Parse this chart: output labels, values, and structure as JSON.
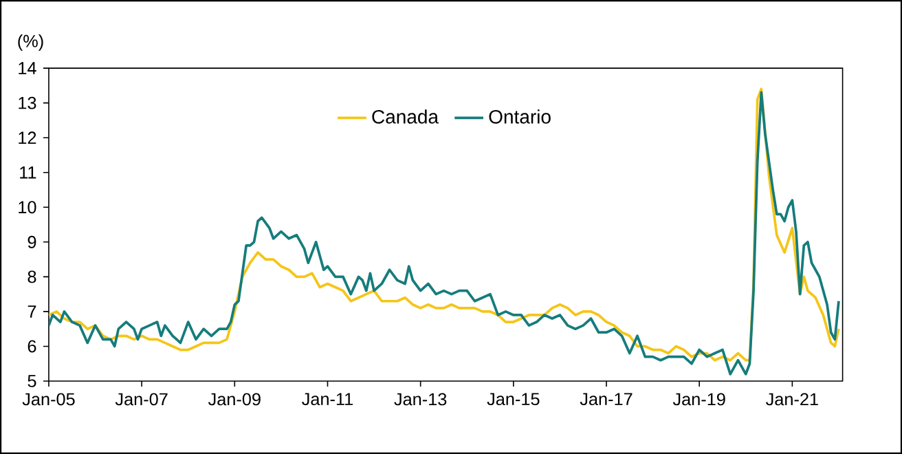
{
  "chart_data": {
    "type": "line",
    "ylabel": "(%)",
    "xlim": [
      "2005-01",
      "2022-02"
    ],
    "xticks": [
      {
        "value": "2005-01",
        "label": "Jan-05"
      },
      {
        "value": "2007-01",
        "label": "Jan-07"
      },
      {
        "value": "2009-01",
        "label": "Jan-09"
      },
      {
        "value": "2011-01",
        "label": "Jan-11"
      },
      {
        "value": "2013-01",
        "label": "Jan-13"
      },
      {
        "value": "2015-01",
        "label": "Jan-15"
      },
      {
        "value": "2017-01",
        "label": "Jan-17"
      },
      {
        "value": "2019-01",
        "label": "Jan-19"
      },
      {
        "value": "2021-01",
        "label": "Jan-21"
      }
    ],
    "ylim": [
      5,
      14
    ],
    "yticks": [
      5,
      6,
      7,
      8,
      9,
      10,
      11,
      12,
      13,
      14
    ],
    "grid": false,
    "legend": "top",
    "marker": "none",
    "line_style": "solid",
    "series": [
      {
        "name": "Canada",
        "color": "#f5c518",
        "x": [
          "2005-01",
          "2005-03",
          "2005-05",
          "2005-07",
          "2005-09",
          "2005-11",
          "2006-01",
          "2006-03",
          "2006-05",
          "2006-07",
          "2006-09",
          "2006-11",
          "2007-01",
          "2007-03",
          "2007-05",
          "2007-07",
          "2007-09",
          "2007-11",
          "2008-01",
          "2008-03",
          "2008-05",
          "2008-07",
          "2008-09",
          "2008-11",
          "2009-01",
          "2009-03",
          "2009-05",
          "2009-07",
          "2009-09",
          "2009-11",
          "2010-01",
          "2010-03",
          "2010-05",
          "2010-07",
          "2010-09",
          "2010-11",
          "2011-01",
          "2011-03",
          "2011-05",
          "2011-07",
          "2011-09",
          "2011-11",
          "2012-01",
          "2012-03",
          "2012-05",
          "2012-07",
          "2012-09",
          "2012-11",
          "2013-01",
          "2013-03",
          "2013-05",
          "2013-07",
          "2013-09",
          "2013-11",
          "2014-01",
          "2014-03",
          "2014-05",
          "2014-07",
          "2014-09",
          "2014-11",
          "2015-01",
          "2015-03",
          "2015-05",
          "2015-07",
          "2015-09",
          "2015-11",
          "2016-01",
          "2016-03",
          "2016-05",
          "2016-07",
          "2016-09",
          "2016-11",
          "2017-01",
          "2017-03",
          "2017-05",
          "2017-07",
          "2017-09",
          "2017-11",
          "2018-01",
          "2018-03",
          "2018-05",
          "2018-07",
          "2018-09",
          "2018-11",
          "2019-01",
          "2019-03",
          "2019-05",
          "2019-07",
          "2019-09",
          "2019-11",
          "2020-01",
          "2020-02",
          "2020-03",
          "2020-04",
          "2020-05",
          "2020-07",
          "2020-09",
          "2020-11",
          "2021-01",
          "2021-03",
          "2021-04",
          "2021-05",
          "2021-07",
          "2021-09",
          "2021-11",
          "2021-12",
          "2022-01"
        ],
        "values": [
          6.9,
          7.0,
          6.8,
          6.7,
          6.7,
          6.5,
          6.6,
          6.3,
          6.2,
          6.3,
          6.3,
          6.2,
          6.3,
          6.2,
          6.2,
          6.1,
          6.0,
          5.9,
          5.9,
          6.0,
          6.1,
          6.1,
          6.1,
          6.2,
          7.0,
          8.0,
          8.4,
          8.7,
          8.5,
          8.5,
          8.3,
          8.2,
          8.0,
          8.0,
          8.1,
          7.7,
          7.8,
          7.7,
          7.6,
          7.3,
          7.4,
          7.5,
          7.6,
          7.3,
          7.3,
          7.3,
          7.4,
          7.2,
          7.1,
          7.2,
          7.1,
          7.1,
          7.2,
          7.1,
          7.1,
          7.1,
          7.0,
          7.0,
          6.9,
          6.7,
          6.7,
          6.8,
          6.9,
          6.9,
          6.9,
          7.1,
          7.2,
          7.1,
          6.9,
          7.0,
          7.0,
          6.9,
          6.7,
          6.6,
          6.4,
          6.3,
          6.0,
          6.0,
          5.9,
          5.9,
          5.8,
          6.0,
          5.9,
          5.7,
          5.8,
          5.8,
          5.6,
          5.7,
          5.6,
          5.8,
          5.6,
          5.6,
          7.8,
          13.1,
          13.4,
          10.9,
          9.2,
          8.7,
          9.4,
          7.5,
          8.0,
          7.6,
          7.4,
          6.9,
          6.1,
          6.0,
          6.5
        ]
      },
      {
        "name": "Ontario",
        "color": "#167c7c",
        "x": [
          "2005-01",
          "2005-02",
          "2005-04",
          "2005-05",
          "2005-07",
          "2005-09",
          "2005-11",
          "2006-01",
          "2006-03",
          "2006-05",
          "2006-06",
          "2006-07",
          "2006-09",
          "2006-11",
          "2006-12",
          "2007-01",
          "2007-03",
          "2007-05",
          "2007-06",
          "2007-07",
          "2007-09",
          "2007-11",
          "2008-01",
          "2008-03",
          "2008-05",
          "2008-07",
          "2008-09",
          "2008-11",
          "2008-12",
          "2009-01",
          "2009-02",
          "2009-04",
          "2009-05",
          "2009-06",
          "2009-07",
          "2009-08",
          "2009-10",
          "2009-11",
          "2010-01",
          "2010-03",
          "2010-05",
          "2010-07",
          "2010-08",
          "2010-10",
          "2010-11",
          "2010-12",
          "2011-01",
          "2011-03",
          "2011-05",
          "2011-07",
          "2011-09",
          "2011-10",
          "2011-11",
          "2011-12",
          "2012-01",
          "2012-03",
          "2012-05",
          "2012-07",
          "2012-09",
          "2012-10",
          "2012-11",
          "2013-01",
          "2013-03",
          "2013-05",
          "2013-07",
          "2013-09",
          "2013-11",
          "2014-01",
          "2014-03",
          "2014-05",
          "2014-07",
          "2014-09",
          "2014-11",
          "2015-01",
          "2015-03",
          "2015-05",
          "2015-07",
          "2015-09",
          "2015-11",
          "2016-01",
          "2016-03",
          "2016-05",
          "2016-07",
          "2016-09",
          "2016-11",
          "2017-01",
          "2017-03",
          "2017-05",
          "2017-07",
          "2017-09",
          "2017-11",
          "2018-01",
          "2018-03",
          "2018-05",
          "2018-07",
          "2018-09",
          "2018-11",
          "2019-01",
          "2019-03",
          "2019-05",
          "2019-07",
          "2019-09",
          "2019-11",
          "2020-01",
          "2020-02",
          "2020-03",
          "2020-04",
          "2020-05",
          "2020-06",
          "2020-07",
          "2020-08",
          "2020-09",
          "2020-10",
          "2020-11",
          "2020-12",
          "2021-01",
          "2021-02",
          "2021-03",
          "2021-04",
          "2021-05",
          "2021-06",
          "2021-07",
          "2021-08",
          "2021-09",
          "2021-10",
          "2021-11",
          "2021-12",
          "2022-01"
        ],
        "values": [
          6.6,
          6.9,
          6.7,
          7.0,
          6.7,
          6.6,
          6.1,
          6.6,
          6.2,
          6.2,
          6.0,
          6.5,
          6.7,
          6.5,
          6.2,
          6.5,
          6.6,
          6.7,
          6.3,
          6.6,
          6.3,
          6.1,
          6.7,
          6.2,
          6.5,
          6.3,
          6.5,
          6.5,
          6.7,
          7.2,
          7.3,
          8.9,
          8.9,
          9.0,
          9.6,
          9.7,
          9.4,
          9.1,
          9.3,
          9.1,
          9.2,
          8.8,
          8.4,
          9.0,
          8.6,
          8.2,
          8.3,
          8.0,
          8.0,
          7.5,
          8.0,
          7.9,
          7.6,
          8.1,
          7.6,
          7.8,
          8.2,
          7.9,
          7.8,
          8.3,
          7.9,
          7.6,
          7.8,
          7.5,
          7.6,
          7.5,
          7.6,
          7.6,
          7.3,
          7.4,
          7.5,
          6.9,
          7.0,
          6.9,
          6.9,
          6.6,
          6.7,
          6.9,
          6.8,
          6.9,
          6.6,
          6.5,
          6.6,
          6.8,
          6.4,
          6.4,
          6.5,
          6.3,
          5.8,
          6.3,
          5.7,
          5.7,
          5.6,
          5.7,
          5.7,
          5.7,
          5.5,
          5.9,
          5.7,
          5.8,
          5.9,
          5.2,
          5.6,
          5.2,
          5.5,
          7.6,
          11.3,
          13.3,
          12.1,
          11.3,
          10.5,
          9.8,
          9.8,
          9.6,
          10.0,
          10.2,
          9.3,
          7.5,
          8.9,
          9.0,
          8.4,
          8.2,
          8.0,
          7.6,
          7.2,
          6.4,
          6.2,
          7.3
        ]
      }
    ]
  }
}
